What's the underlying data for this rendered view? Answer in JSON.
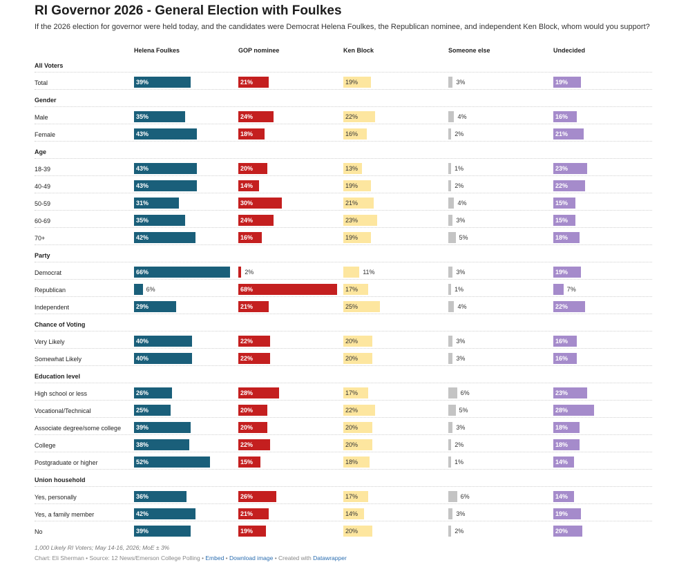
{
  "title": "RI Governor 2026 - General Election with Foulkes",
  "subtitle": "If the 2026 election for governor were held today, and the candidates were Democrat Helena Foulkes, the Republican nominee, and independent Ken Block, whom would you support?",
  "footer": {
    "notes": "1,000 Likely RI Voters; May 14-16, 2026; MoE ± 3%",
    "credit": "Chart: Eli Sherman • Source: 12 News/Emerson College Polling • ",
    "embed": "Embed",
    "sep1": " • ",
    "download": "Download image",
    "sep2": " • Created with ",
    "datawrapper": "Datawrapper"
  },
  "chart_data": {
    "type": "table",
    "unit": "%",
    "columns": [
      {
        "name": "Helena Foulkes",
        "color": "#1a5f7a"
      },
      {
        "name": "GOP nominee",
        "color": "#c41f1f"
      },
      {
        "name": "Ken Block",
        "color": "#fde69f"
      },
      {
        "name": "Someone else",
        "color": "#c4c4c4"
      },
      {
        "name": "Undecided",
        "color": "#a58bcb"
      }
    ],
    "groups": [
      {
        "name": "All Voters",
        "rows": [
          {
            "label": "Total",
            "values": [
              39,
              21,
              19,
              3,
              19
            ]
          }
        ]
      },
      {
        "name": "Gender",
        "rows": [
          {
            "label": "Male",
            "values": [
              35,
              24,
              22,
              4,
              16
            ]
          },
          {
            "label": "Female",
            "values": [
              43,
              18,
              16,
              2,
              21
            ]
          }
        ]
      },
      {
        "name": "Age",
        "rows": [
          {
            "label": "18-39",
            "values": [
              43,
              20,
              13,
              1,
              23
            ]
          },
          {
            "label": "40-49",
            "values": [
              43,
              14,
              19,
              2,
              22
            ]
          },
          {
            "label": "50-59",
            "values": [
              31,
              30,
              21,
              4,
              15
            ]
          },
          {
            "label": "60-69",
            "values": [
              35,
              24,
              23,
              3,
              15
            ]
          },
          {
            "label": "70+",
            "values": [
              42,
              16,
              19,
              5,
              18
            ]
          }
        ]
      },
      {
        "name": "Party",
        "rows": [
          {
            "label": "Democrat",
            "values": [
              66,
              2,
              11,
              3,
              19
            ]
          },
          {
            "label": "Republican",
            "values": [
              6,
              68,
              17,
              1,
              7
            ]
          },
          {
            "label": "Independent",
            "values": [
              29,
              21,
              25,
              4,
              22
            ]
          }
        ]
      },
      {
        "name": "Chance of Voting",
        "rows": [
          {
            "label": "Very Likely",
            "values": [
              40,
              22,
              20,
              3,
              16
            ]
          },
          {
            "label": "Somewhat Likely",
            "values": [
              40,
              22,
              20,
              3,
              16
            ]
          }
        ]
      },
      {
        "name": "Education level",
        "rows": [
          {
            "label": "High school or less",
            "values": [
              26,
              28,
              17,
              6,
              23
            ]
          },
          {
            "label": "Vocational/Technical",
            "values": [
              25,
              20,
              22,
              5,
              28
            ]
          },
          {
            "label": "Associate degree/some college",
            "values": [
              39,
              20,
              20,
              3,
              18
            ]
          },
          {
            "label": "College",
            "values": [
              38,
              22,
              20,
              2,
              18
            ]
          },
          {
            "label": "Postgraduate or higher",
            "values": [
              52,
              15,
              18,
              1,
              14
            ]
          }
        ]
      },
      {
        "name": "Union household",
        "rows": [
          {
            "label": "Yes, personally",
            "values": [
              36,
              26,
              17,
              6,
              14
            ]
          },
          {
            "label": "Yes, a family member",
            "values": [
              42,
              21,
              14,
              3,
              19
            ]
          },
          {
            "label": "No",
            "values": [
              39,
              19,
              20,
              2,
              20
            ]
          }
        ]
      }
    ]
  }
}
